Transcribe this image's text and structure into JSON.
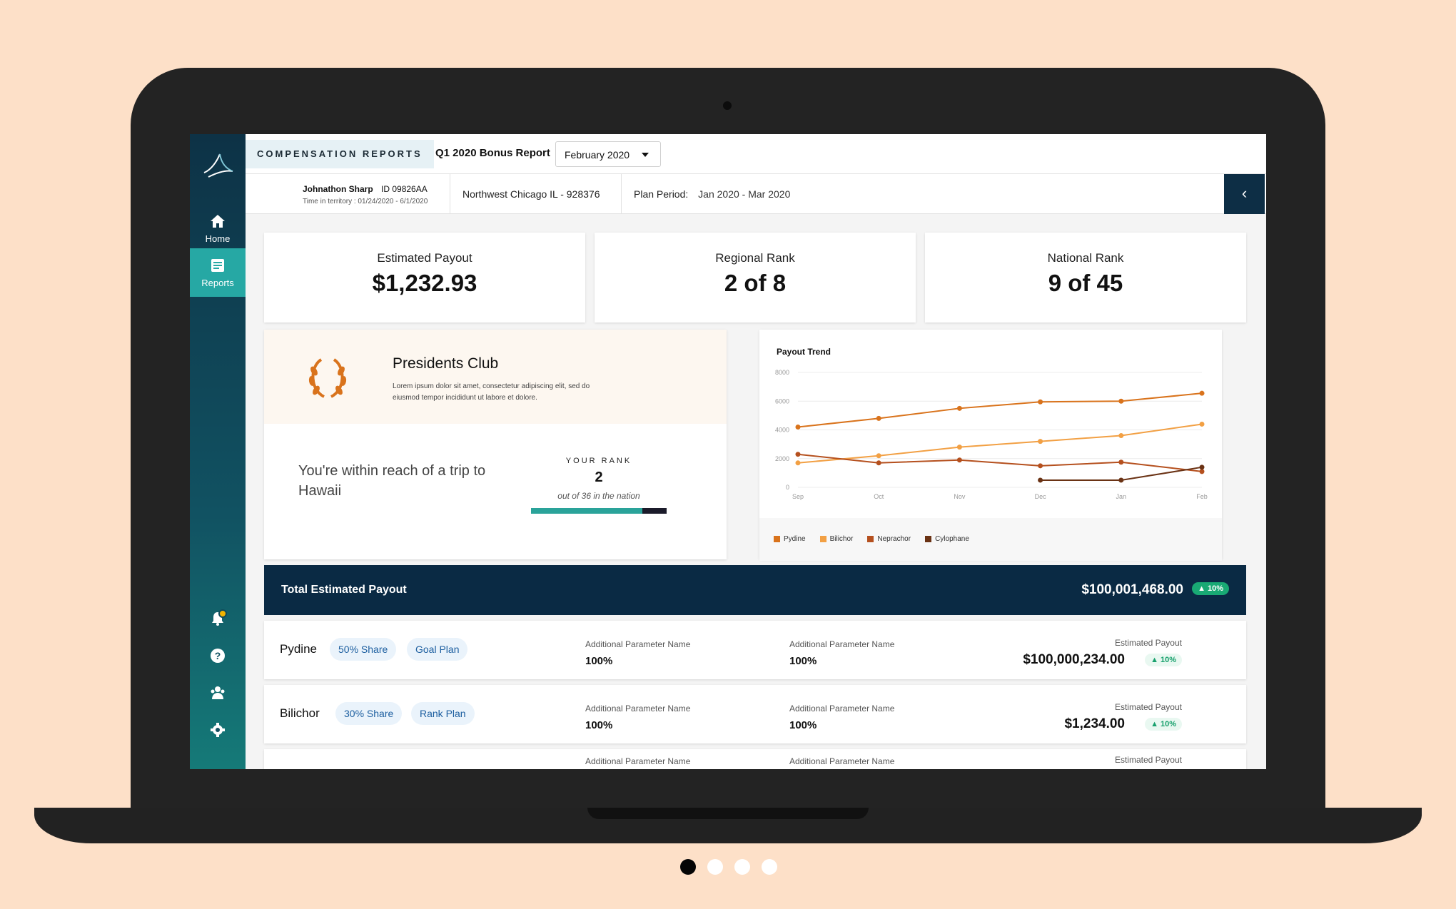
{
  "app": {
    "compensation_tag": "COMPENSATION REPORTS",
    "report_title": "Q1 2020 Bonus Report",
    "month_selected": "February 2020"
  },
  "sidebar": {
    "items": [
      {
        "label": "Home",
        "icon": "home-icon"
      },
      {
        "label": "Reports",
        "icon": "reports-icon"
      }
    ],
    "bottom_icons": [
      "bell-icon",
      "help-icon",
      "team-icon",
      "gear-icon"
    ]
  },
  "info": {
    "name": "Johnathon Sharp",
    "id": "ID 09826AA",
    "time_in_territory": "Time in territory : 01/24/2020 - 6/1/2020",
    "territory": "Northwest Chicago IL - 928376",
    "plan_period_label": "Plan Period:",
    "plan_period_value": "Jan 2020 - Mar 2020"
  },
  "kpis": [
    {
      "label": "Estimated Payout",
      "value": "$1,232.93"
    },
    {
      "label": "Regional Rank",
      "value": "2 of 8"
    },
    {
      "label": "National Rank",
      "value": "9 of 45"
    }
  ],
  "presidents_club": {
    "title": "Presidents Club",
    "description": "Lorem ipsum dolor sit amet, consectetur adipiscing elit, sed do eiusmod tempor incididunt ut labore et dolore.",
    "reach_text": "You're within reach of  a trip to Hawaii",
    "rank_label": "YOUR RANK",
    "rank_value": "2",
    "rank_sub": "out of 36 in the nation",
    "rank_progress": 0.82
  },
  "chart_data": {
    "type": "line",
    "title": "Payout Trend",
    "xlabel": "",
    "ylabel": "",
    "x": [
      "Sep",
      "Oct",
      "Nov",
      "Dec",
      "Jan",
      "Feb"
    ],
    "ylim": [
      0,
      8000
    ],
    "yticks": [
      "0",
      "2000",
      "4000",
      "6000",
      "8000"
    ],
    "grid": true,
    "legend": "bottom-left",
    "series": [
      {
        "name": "Pydine",
        "color": "#d9731c",
        "values": [
          4200,
          4800,
          5500,
          5950,
          6000,
          6550
        ]
      },
      {
        "name": "Bilichor",
        "color": "#f2a044",
        "values": [
          1700,
          2200,
          2800,
          3200,
          3600,
          4400
        ]
      },
      {
        "name": "Neprachor",
        "color": "#b5501e",
        "values": [
          2300,
          1700,
          1900,
          1500,
          1750,
          1100
        ]
      },
      {
        "name": "Cylophane",
        "color": "#6a3214",
        "values": [
          null,
          null,
          null,
          500,
          500,
          1400
        ]
      }
    ]
  },
  "total": {
    "label": "Total Estimated Payout",
    "value": "$100,001,468.00",
    "change": "10%"
  },
  "rows": [
    {
      "name": "Pydine",
      "share": "50% Share",
      "plan": "Goal Plan",
      "param1_label": "Additional Parameter Name",
      "param1_value": "100%",
      "param2_label": "Additional Parameter Name",
      "param2_value": "100%",
      "est_label": "Estimated Payout",
      "est_value": "$100,000,234.00",
      "change": "10%"
    },
    {
      "name": "Bilichor",
      "share": "30% Share",
      "plan": "Rank Plan",
      "param1_label": "Additional Parameter Name",
      "param1_value": "100%",
      "param2_label": "Additional Parameter Name",
      "param2_value": "100%",
      "est_label": "Estimated Payout",
      "est_value": "$1,234.00",
      "change": "10%"
    },
    {
      "param1_label": "Additional Parameter Name",
      "param2_label": "Additional Parameter Name",
      "est_label": "Estimated Payout"
    }
  ],
  "carousel": {
    "count": 4,
    "active": 0
  }
}
